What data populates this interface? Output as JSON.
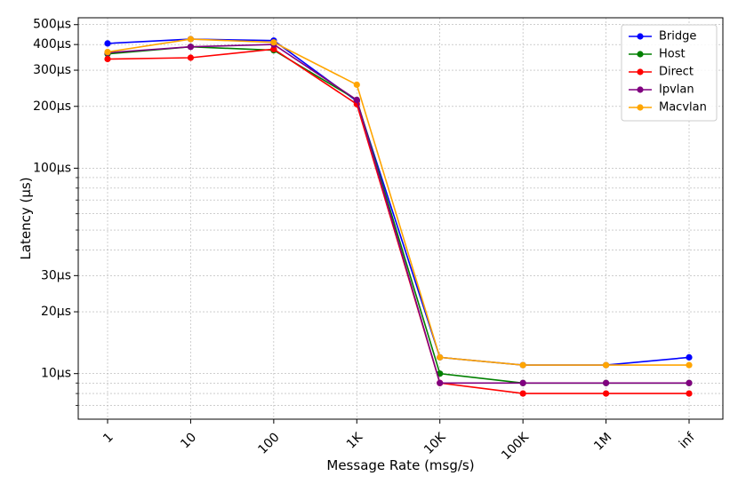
{
  "chart_data": {
    "type": "line",
    "xlabel": "Message Rate (msg/s)",
    "ylabel": "Latency (µs)",
    "categories": [
      "1",
      "10",
      "100",
      "1K",
      "10K",
      "100K",
      "1M",
      "inf"
    ],
    "y_scale": "log",
    "ylim_us": [
      6,
      540
    ],
    "y_ticks": [
      {
        "value": 10,
        "label": "10µs"
      },
      {
        "value": 20,
        "label": "20µs"
      },
      {
        "value": 30,
        "label": "30µs"
      },
      {
        "value": 100,
        "label": "100µs"
      },
      {
        "value": 200,
        "label": "200µs"
      },
      {
        "value": 300,
        "label": "300µs"
      },
      {
        "value": 400,
        "label": "400µs"
      },
      {
        "value": 500,
        "label": "500µs"
      }
    ],
    "y_minor_gridlines": [
      7,
      8,
      9,
      40,
      50,
      60,
      70,
      80,
      90
    ],
    "grid": true,
    "legend_position": "top-right",
    "series": [
      {
        "name": "Bridge",
        "color": "#0000ff",
        "values": [
          405,
          425,
          418,
          212,
          12,
          11,
          11,
          12
        ]
      },
      {
        "name": "Host",
        "color": "#008000",
        "values": [
          360,
          390,
          375,
          215,
          10,
          9,
          9,
          9
        ]
      },
      {
        "name": "Direct",
        "color": "#ff0000",
        "values": [
          340,
          345,
          380,
          205,
          9,
          8,
          8,
          8
        ]
      },
      {
        "name": "Ipvlan",
        "color": "#800080",
        "values": [
          365,
          390,
          400,
          215,
          9,
          9,
          9,
          9
        ]
      },
      {
        "name": "Macvlan",
        "color": "#ffa500",
        "values": [
          368,
          425,
          410,
          255,
          12,
          11,
          11,
          11
        ]
      }
    ]
  }
}
